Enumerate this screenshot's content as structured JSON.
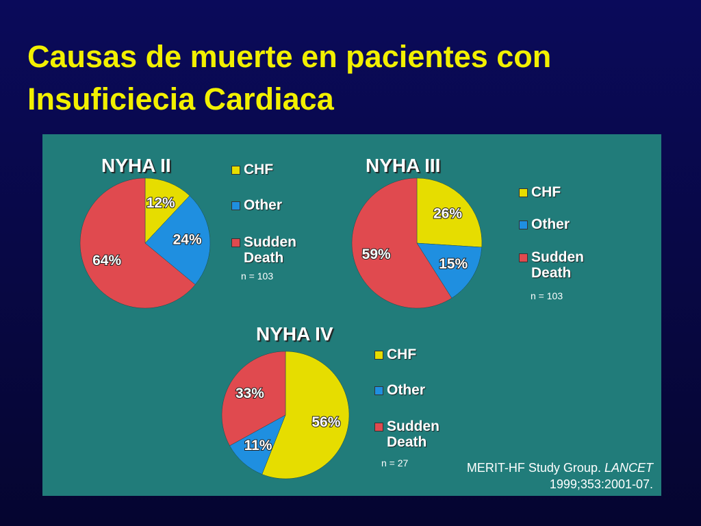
{
  "title": "Causas de muerte en pacientes con Insuficiecia Cardiaca",
  "citation": {
    "authors": "MERIT-HF Study Group.",
    "journal": "LANCET",
    "ref": "1999;353:2001-07."
  },
  "chart_data": [
    {
      "type": "pie",
      "title": "NYHA II",
      "categories": [
        "CHF",
        "Other",
        "Sudden Death"
      ],
      "values": [
        12,
        24,
        64
      ],
      "value_labels": [
        "12%",
        "24%",
        "64%"
      ],
      "colors": [
        "#e6dd00",
        "#1f8fe0",
        "#e04a4f"
      ],
      "note": "n = 103"
    },
    {
      "type": "pie",
      "title": "NYHA III",
      "categories": [
        "CHF",
        "Other",
        "Sudden Death"
      ],
      "values": [
        26,
        15,
        59
      ],
      "value_labels": [
        "26%",
        "15%",
        "59%"
      ],
      "colors": [
        "#e6dd00",
        "#1f8fe0",
        "#e04a4f"
      ],
      "note": "n = 103"
    },
    {
      "type": "pie",
      "title": "NYHA IV",
      "categories": [
        "CHF",
        "Other",
        "Sudden Death"
      ],
      "values": [
        56,
        11,
        33
      ],
      "value_labels": [
        "56%",
        "11%",
        "33%"
      ],
      "colors": [
        "#e6dd00",
        "#1f8fe0",
        "#e04a4f"
      ],
      "note": "n = 27"
    }
  ]
}
